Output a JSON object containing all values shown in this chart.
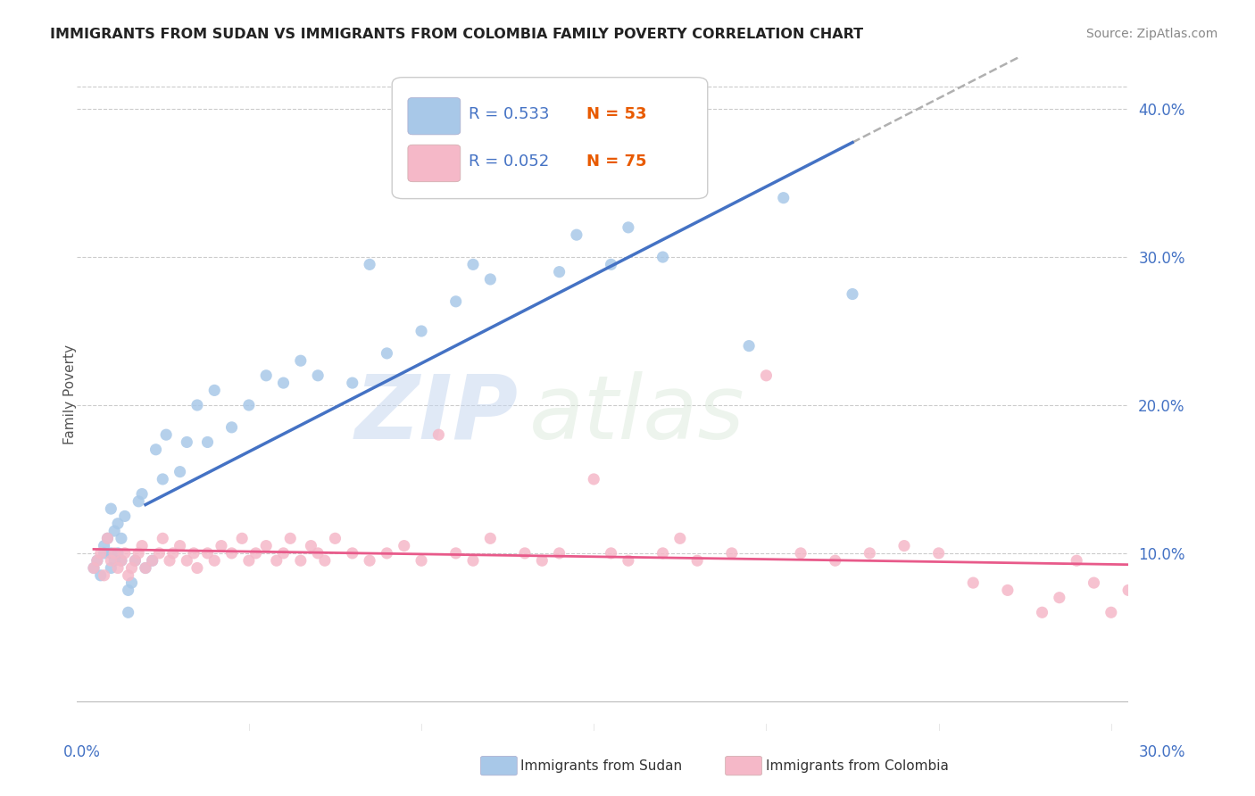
{
  "title": "IMMIGRANTS FROM SUDAN VS IMMIGRANTS FROM COLOMBIA FAMILY POVERTY CORRELATION CHART",
  "source": "Source: ZipAtlas.com",
  "ylabel": "Family Poverty",
  "xlim": [
    0.0,
    0.305
  ],
  "ylim": [
    -0.02,
    0.435
  ],
  "y_ticks": [
    0.1,
    0.2,
    0.3,
    0.4
  ],
  "y_tick_labels": [
    "10.0%",
    "20.0%",
    "30.0%",
    "40.0%"
  ],
  "legend_r_sudan": "R = 0.533",
  "legend_n_sudan": "N = 53",
  "legend_r_colombia": "R = 0.052",
  "legend_n_colombia": "N = 75",
  "sudan_color": "#a8c8e8",
  "colombia_color": "#f5b8c8",
  "trend_sudan_color": "#4472c4",
  "trend_colombia_color": "#e85a8a",
  "trend_gray_color": "#b0b0b0",
  "watermark_zip": "ZIP",
  "watermark_atlas": "atlas",
  "sudan_x": [
    0.005,
    0.006,
    0.007,
    0.008,
    0.008,
    0.009,
    0.01,
    0.01,
    0.01,
    0.011,
    0.011,
    0.012,
    0.012,
    0.013,
    0.013,
    0.014,
    0.015,
    0.015,
    0.016,
    0.017,
    0.018,
    0.019,
    0.02,
    0.022,
    0.023,
    0.025,
    0.026,
    0.03,
    0.032,
    0.035,
    0.038,
    0.04,
    0.045,
    0.05,
    0.055,
    0.06,
    0.065,
    0.07,
    0.08,
    0.085,
    0.09,
    0.1,
    0.11,
    0.115,
    0.12,
    0.14,
    0.145,
    0.155,
    0.16,
    0.17,
    0.195,
    0.205,
    0.225
  ],
  "sudan_y": [
    0.09,
    0.095,
    0.085,
    0.1,
    0.105,
    0.11,
    0.09,
    0.1,
    0.13,
    0.095,
    0.115,
    0.1,
    0.12,
    0.095,
    0.11,
    0.125,
    0.06,
    0.075,
    0.08,
    0.095,
    0.135,
    0.14,
    0.09,
    0.095,
    0.17,
    0.15,
    0.18,
    0.155,
    0.175,
    0.2,
    0.175,
    0.21,
    0.185,
    0.2,
    0.22,
    0.215,
    0.23,
    0.22,
    0.215,
    0.295,
    0.235,
    0.25,
    0.27,
    0.295,
    0.285,
    0.29,
    0.315,
    0.295,
    0.32,
    0.3,
    0.24,
    0.34,
    0.275
  ],
  "colombia_x": [
    0.005,
    0.006,
    0.007,
    0.008,
    0.009,
    0.01,
    0.011,
    0.012,
    0.013,
    0.014,
    0.015,
    0.016,
    0.017,
    0.018,
    0.019,
    0.02,
    0.022,
    0.024,
    0.025,
    0.027,
    0.028,
    0.03,
    0.032,
    0.034,
    0.035,
    0.038,
    0.04,
    0.042,
    0.045,
    0.048,
    0.05,
    0.052,
    0.055,
    0.058,
    0.06,
    0.062,
    0.065,
    0.068,
    0.07,
    0.072,
    0.075,
    0.08,
    0.085,
    0.09,
    0.095,
    0.1,
    0.105,
    0.11,
    0.115,
    0.12,
    0.13,
    0.135,
    0.14,
    0.15,
    0.155,
    0.16,
    0.17,
    0.175,
    0.18,
    0.19,
    0.2,
    0.21,
    0.22,
    0.23,
    0.24,
    0.25,
    0.26,
    0.27,
    0.28,
    0.285,
    0.29,
    0.295,
    0.3,
    0.305,
    0.31
  ],
  "colombia_y": [
    0.09,
    0.095,
    0.1,
    0.085,
    0.11,
    0.095,
    0.1,
    0.09,
    0.095,
    0.1,
    0.085,
    0.09,
    0.095,
    0.1,
    0.105,
    0.09,
    0.095,
    0.1,
    0.11,
    0.095,
    0.1,
    0.105,
    0.095,
    0.1,
    0.09,
    0.1,
    0.095,
    0.105,
    0.1,
    0.11,
    0.095,
    0.1,
    0.105,
    0.095,
    0.1,
    0.11,
    0.095,
    0.105,
    0.1,
    0.095,
    0.11,
    0.1,
    0.095,
    0.1,
    0.105,
    0.095,
    0.18,
    0.1,
    0.095,
    0.11,
    0.1,
    0.095,
    0.1,
    0.15,
    0.1,
    0.095,
    0.1,
    0.11,
    0.095,
    0.1,
    0.22,
    0.1,
    0.095,
    0.1,
    0.105,
    0.1,
    0.08,
    0.075,
    0.06,
    0.07,
    0.095,
    0.08,
    0.06,
    0.075,
    0.07
  ]
}
